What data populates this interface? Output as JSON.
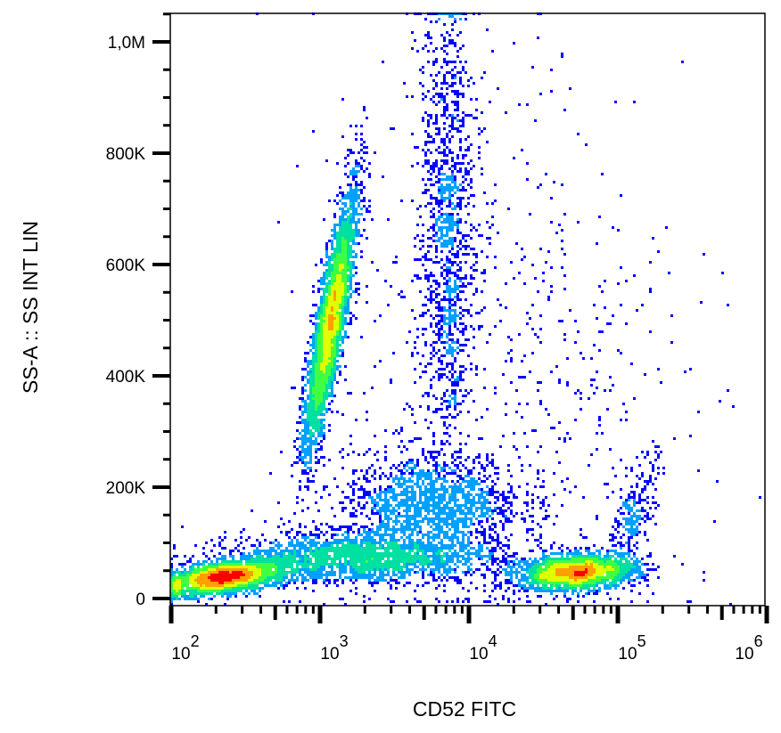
{
  "chart_data": {
    "type": "scatter",
    "subtype": "density-dot-plot",
    "xlabel": "CD52 FITC",
    "ylabel": "SS-A :: SS INT LIN",
    "x_scale": "log",
    "xlim": [
      100,
      1000000
    ],
    "ylim": [
      0,
      1050000
    ],
    "x_ticks": [
      {
        "value": 100,
        "base": "10",
        "exp": "2"
      },
      {
        "value": 1000,
        "base": "10",
        "exp": "3"
      },
      {
        "value": 10000,
        "base": "10",
        "exp": "4"
      },
      {
        "value": 100000,
        "base": "10",
        "exp": "5"
      },
      {
        "value": 1000000,
        "base": "10",
        "exp": "6"
      }
    ],
    "y_ticks": [
      {
        "value": 0,
        "label": "0"
      },
      {
        "value": 200000,
        "label": "200K"
      },
      {
        "value": 400000,
        "label": "400K"
      },
      {
        "value": 600000,
        "label": "600K"
      },
      {
        "value": 800000,
        "label": "800K"
      },
      {
        "value": 1000000,
        "label": "1,0M"
      }
    ],
    "grid": false,
    "color_scale": [
      "#0000ff",
      "#00a0ff",
      "#00e0a0",
      "#40ff40",
      "#e0ff00",
      "#ffa000",
      "#ff0000"
    ],
    "populations": [
      {
        "log10_x_mean": 2.35,
        "y_mean": 38000,
        "log10_x_sd": 0.22,
        "y_sd": 16000,
        "corr": 0.5,
        "n": 2600
      },
      {
        "log10_x_mean": 3.3,
        "y_mean": 75000,
        "log10_x_sd": 0.45,
        "y_sd": 22000,
        "corr": 0.0,
        "n": 2200
      },
      {
        "log10_x_mean": 3.07,
        "y_mean": 500000,
        "log10_x_sd": 0.09,
        "y_sd": 120000,
        "corr": 0.85,
        "n": 3400
      },
      {
        "log10_x_mean": 3.85,
        "y_mean": 650000,
        "log10_x_sd": 0.09,
        "y_sd": 230000,
        "corr": 0.0,
        "n": 1300
      },
      {
        "log10_x_mean": 3.75,
        "y_mean": 170000,
        "log10_x_sd": 0.3,
        "y_sd": 45000,
        "corr": 0.0,
        "n": 1500
      },
      {
        "log10_x_mean": 4.72,
        "y_mean": 48000,
        "log10_x_sd": 0.2,
        "y_sd": 16000,
        "corr": 0.2,
        "n": 2300
      },
      {
        "log10_x_mean": 5.1,
        "y_mean": 150000,
        "log10_x_sd": 0.08,
        "y_sd": 50000,
        "corr": 0.6,
        "n": 250
      },
      {
        "log10_x_mean": 4.2,
        "y_mean": 400000,
        "log10_x_sd": 0.6,
        "y_sd": 260000,
        "corr": 0.0,
        "n": 700
      }
    ]
  }
}
